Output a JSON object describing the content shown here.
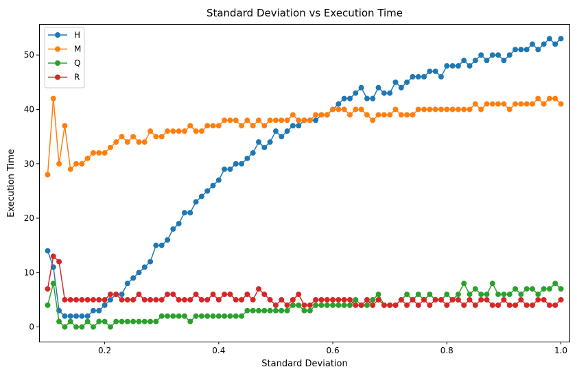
{
  "chart_data": {
    "type": "line",
    "title": "Standard Deviation vs Execution Time",
    "xlabel": "Standard Deviation",
    "ylabel": "Execution Time",
    "xlim": [
      0.085,
      1.015
    ],
    "ylim": [
      -2.7,
      55.7
    ],
    "xticks": [
      0.2,
      0.4,
      0.6,
      0.8,
      1.0
    ],
    "xtick_labels": [
      "0.2",
      "0.4",
      "0.6",
      "0.8",
      "1.0"
    ],
    "yticks": [
      0,
      10,
      20,
      30,
      40,
      50
    ],
    "ytick_labels": [
      "0",
      "10",
      "20",
      "30",
      "40",
      "50"
    ],
    "grid": false,
    "legend_position": "top-left",
    "x": [
      0.1,
      0.11,
      0.12,
      0.13,
      0.14,
      0.15,
      0.16,
      0.17,
      0.18,
      0.19,
      0.2,
      0.21,
      0.22,
      0.23,
      0.24,
      0.25,
      0.26,
      0.27,
      0.28,
      0.29,
      0.3,
      0.31,
      0.32,
      0.33,
      0.34,
      0.35,
      0.36,
      0.37,
      0.38,
      0.39,
      0.4,
      0.41,
      0.42,
      0.43,
      0.44,
      0.45,
      0.46,
      0.47,
      0.48,
      0.49,
      0.5,
      0.51,
      0.52,
      0.53,
      0.54,
      0.55,
      0.56,
      0.57,
      0.58,
      0.59,
      0.6,
      0.61,
      0.62,
      0.63,
      0.64,
      0.65,
      0.66,
      0.67,
      0.68,
      0.69,
      0.7,
      0.71,
      0.72,
      0.73,
      0.74,
      0.75,
      0.76,
      0.77,
      0.78,
      0.79,
      0.8,
      0.81,
      0.82,
      0.83,
      0.84,
      0.85,
      0.86,
      0.87,
      0.88,
      0.89,
      0.9,
      0.91,
      0.92,
      0.93,
      0.94,
      0.95,
      0.96,
      0.97,
      0.98,
      0.99,
      1.0
    ],
    "series": [
      {
        "name": "H",
        "color": "#1f77b4",
        "values": [
          14,
          11,
          3,
          2,
          2,
          2,
          2,
          2,
          3,
          3,
          4,
          5,
          6,
          6,
          8,
          9,
          10,
          11,
          12,
          15,
          15,
          16,
          18,
          19,
          21,
          21,
          23,
          24,
          25,
          26,
          27,
          29,
          29,
          30,
          30,
          31,
          32,
          34,
          33,
          34,
          36,
          35,
          36,
          37,
          37,
          38,
          38,
          38,
          39,
          39,
          40,
          41,
          42,
          42,
          43,
          44,
          42,
          42,
          44,
          43,
          43,
          45,
          44,
          45,
          46,
          46,
          46,
          47,
          47,
          46,
          48,
          48,
          48,
          49,
          48,
          49,
          50,
          49,
          50,
          50,
          49,
          50,
          51,
          51,
          51,
          52,
          51,
          52,
          53,
          52,
          53
        ]
      },
      {
        "name": "M",
        "color": "#ff7f0e",
        "values": [
          28,
          42,
          30,
          37,
          29,
          30,
          30,
          31,
          32,
          32,
          32,
          33,
          34,
          35,
          34,
          35,
          34,
          34,
          36,
          35,
          35,
          36,
          36,
          36,
          36,
          37,
          36,
          36,
          37,
          37,
          37,
          38,
          38,
          38,
          37,
          38,
          37,
          38,
          37,
          38,
          38,
          38,
          38,
          39,
          38,
          38,
          38,
          39,
          39,
          39,
          40,
          40,
          40,
          39,
          40,
          40,
          39,
          38,
          39,
          39,
          39,
          40,
          39,
          39,
          39,
          40,
          40,
          40,
          40,
          40,
          40,
          40,
          40,
          40,
          40,
          41,
          40,
          41,
          41,
          41,
          41,
          40,
          41,
          41,
          41,
          41,
          42,
          41,
          42,
          42,
          41
        ]
      },
      {
        "name": "Q",
        "color": "#2ca02c",
        "values": [
          4,
          8,
          1,
          0,
          1,
          0,
          0,
          1,
          0,
          1,
          1,
          0,
          1,
          1,
          1,
          1,
          1,
          1,
          1,
          1,
          2,
          2,
          2,
          2,
          2,
          1,
          2,
          2,
          2,
          2,
          2,
          2,
          2,
          2,
          2,
          3,
          3,
          3,
          3,
          3,
          3,
          3,
          3,
          4,
          4,
          3,
          3,
          4,
          4,
          4,
          4,
          4,
          4,
          4,
          5,
          4,
          4,
          5,
          6,
          4,
          4,
          4,
          5,
          6,
          5,
          6,
          5,
          6,
          5,
          5,
          6,
          5,
          6,
          8,
          6,
          7,
          6,
          6,
          8,
          6,
          6,
          6,
          7,
          6,
          7,
          7,
          6,
          7,
          7,
          8,
          7
        ]
      },
      {
        "name": "R",
        "color": "#d62728",
        "values": [
          7,
          13,
          12,
          5,
          5,
          5,
          5,
          5,
          5,
          5,
          5,
          6,
          6,
          5,
          5,
          5,
          6,
          5,
          5,
          5,
          5,
          6,
          6,
          5,
          5,
          5,
          6,
          5,
          5,
          6,
          5,
          6,
          6,
          5,
          5,
          6,
          5,
          7,
          6,
          5,
          4,
          5,
          4,
          5,
          6,
          4,
          4,
          5,
          5,
          5,
          5,
          5,
          5,
          5,
          4,
          4,
          5,
          4,
          5,
          4,
          4,
          4,
          5,
          4,
          5,
          4,
          5,
          4,
          5,
          5,
          4,
          5,
          5,
          4,
          5,
          4,
          5,
          5,
          4,
          4,
          5,
          4,
          4,
          5,
          4,
          4,
          5,
          5,
          4,
          4,
          5
        ]
      }
    ]
  }
}
